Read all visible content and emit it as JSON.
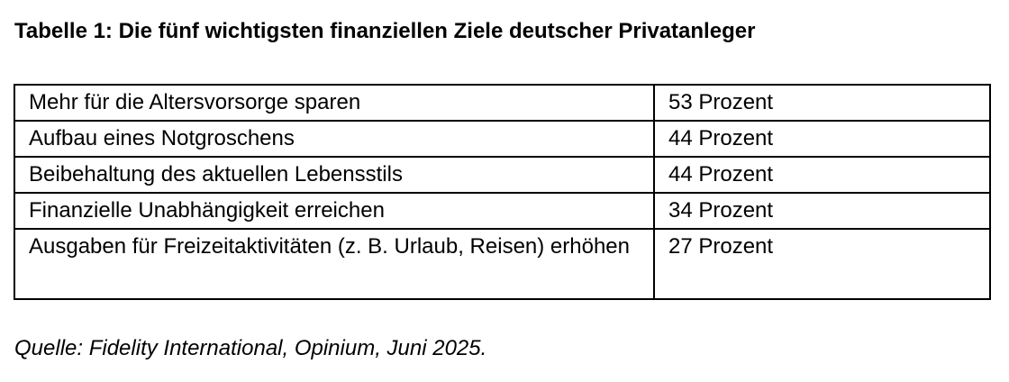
{
  "title": "Tabelle 1: Die fünf wichtigsten finanziellen Ziele deutscher Privatanleger",
  "table": {
    "rows": [
      {
        "goal": "Mehr für die Altersvorsorge sparen",
        "share": "53 Prozent"
      },
      {
        "goal": "Aufbau eines Notgroschens",
        "share": "44 Prozent"
      },
      {
        "goal": "Beibehaltung des aktuellen Lebensstils",
        "share": "44 Prozent"
      },
      {
        "goal": "Finanzielle Unabhängigkeit erreichen",
        "share": "34 Prozent"
      },
      {
        "goal": "Ausgaben für Freizeitaktivitäten (z. B. Urlaub, Reisen) erhöhen",
        "share": "27 Prozent"
      }
    ]
  },
  "source": "Quelle: Fidelity International, Opinium, Juni 2025."
}
